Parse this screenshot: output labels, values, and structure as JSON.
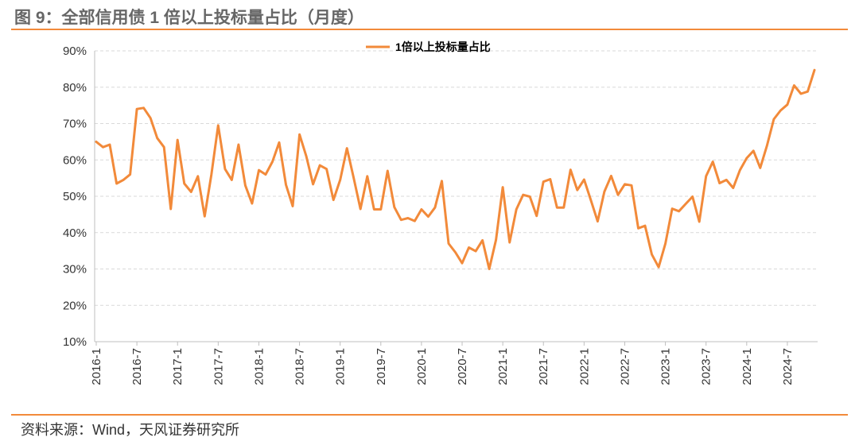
{
  "header": {
    "title": "图 9：全部信用债 1 倍以上投标量占比（月度）"
  },
  "footer": {
    "source": "资料来源：Wind，天风证券研究所"
  },
  "colors": {
    "accent": "#f28a3a",
    "line": "#f28a3a",
    "grid": "#d9d9d9"
  },
  "chart_data": {
    "type": "line",
    "title": "",
    "xlabel": "",
    "ylabel": "",
    "ylim": [
      10,
      90
    ],
    "yticks": [
      "10%",
      "20%",
      "30%",
      "40%",
      "50%",
      "60%",
      "70%",
      "80%",
      "90%"
    ],
    "ytick_values": [
      10,
      20,
      30,
      40,
      50,
      60,
      70,
      80,
      90
    ],
    "xticks": [
      "2016-1",
      "2016-7",
      "2017-1",
      "2017-7",
      "2018-1",
      "2018-7",
      "2019-1",
      "2019-7",
      "2020-1",
      "2020-7",
      "2021-1",
      "2021-7",
      "2022-1",
      "2022-7",
      "2023-1",
      "2023-7",
      "2024-1",
      "2024-7"
    ],
    "grid": true,
    "legend_position": "top-center",
    "series": [
      {
        "name": "1倍以上投标量占比",
        "x_start": "2016-01",
        "x_end": "2024-11",
        "values": [
          65.0,
          63.5,
          64.2,
          53.5,
          54.5,
          56.0,
          74.0,
          74.3,
          71.5,
          66.0,
          63.5,
          46.5,
          65.5,
          53.5,
          51.2,
          55.5,
          44.5,
          56.0,
          69.5,
          57.5,
          54.5,
          64.2,
          53.0,
          48.0,
          57.2,
          56.0,
          59.5,
          64.8,
          53.2,
          47.3,
          67.0,
          61.0,
          53.3,
          58.5,
          57.5,
          49.0,
          54.5,
          63.2,
          55.0,
          46.5,
          55.5,
          46.4,
          46.4,
          57.0,
          47.0,
          43.5,
          44.0,
          43.2,
          46.4,
          44.4,
          46.9,
          54.2,
          37.0,
          34.6,
          31.6,
          35.9,
          34.9,
          37.9,
          30.0,
          38.0,
          52.5,
          37.3,
          46.4,
          50.4,
          49.9,
          44.6,
          54.0,
          54.7,
          46.9,
          46.9,
          57.3,
          51.7,
          54.6,
          48.9,
          43.1,
          51.3,
          55.6,
          50.4,
          53.3,
          53.0,
          41.2,
          41.9,
          34.0,
          30.5,
          37.0,
          46.6,
          45.9,
          47.9,
          49.9,
          43.0,
          55.5,
          59.5,
          53.6,
          54.5,
          52.3,
          57.2,
          60.5,
          62.5,
          57.8,
          64.0,
          71.2,
          73.6,
          75.2,
          80.5,
          78.2,
          78.8,
          84.7
        ]
      }
    ]
  }
}
